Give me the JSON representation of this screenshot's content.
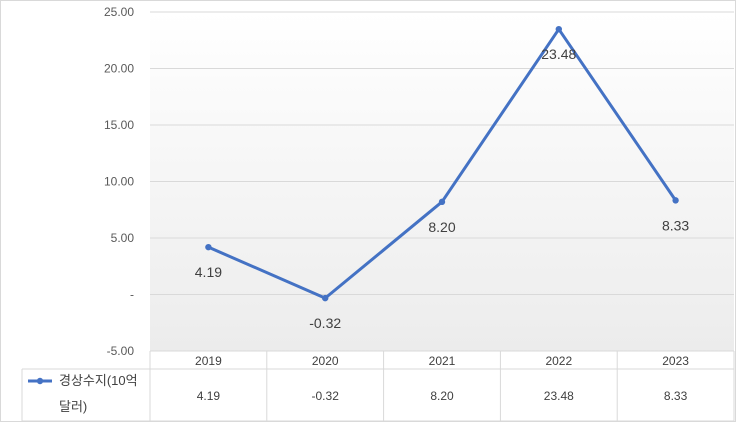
{
  "chart_data": {
    "type": "line",
    "categories": [
      "2019",
      "2020",
      "2021",
      "2022",
      "2023"
    ],
    "series": [
      {
        "name": "경상수지(10억 달러)",
        "name_lines": [
          "경상수지(10억",
          "달러)"
        ],
        "values": [
          4.19,
          -0.32,
          8.2,
          23.48,
          8.33
        ],
        "value_labels": [
          "4.19",
          "-0.32",
          "8.20",
          "23.48",
          "8.33"
        ],
        "color": "#4472c4"
      }
    ],
    "ylim": [
      -5,
      25
    ],
    "yticks": [
      25,
      20,
      15,
      10,
      5,
      0,
      -5
    ],
    "ytick_labels": [
      "25.00",
      "20.00",
      "15.00",
      "10.00",
      "5.00",
      "-",
      "-5.00"
    ],
    "grid": true,
    "legend": "data-table",
    "data_table": true
  }
}
